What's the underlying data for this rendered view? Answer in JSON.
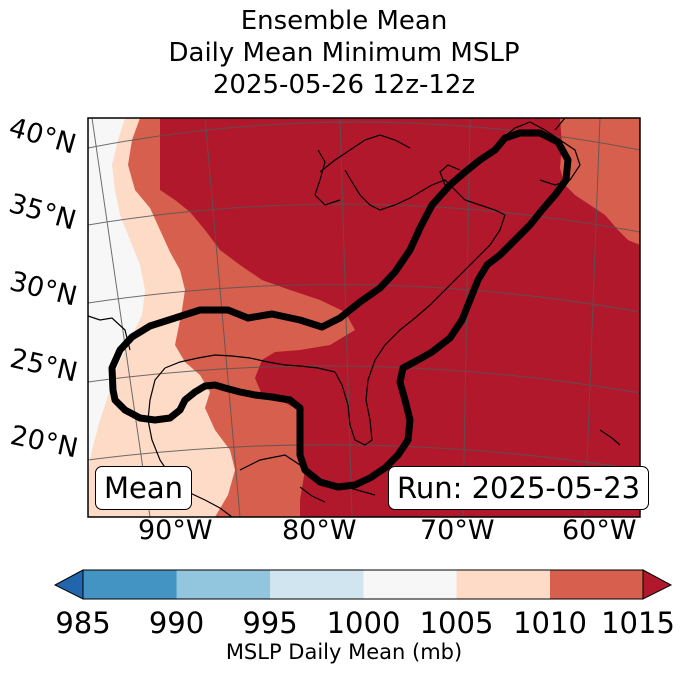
{
  "title": {
    "line1": "Ensemble Mean",
    "line2": "Daily Mean Minimum MSLP",
    "line3": "2025-05-26 12z-12z"
  },
  "map": {
    "latitude_labels": [
      "40°N",
      "35°N",
      "30°N",
      "25°N",
      "20°N"
    ],
    "longitude_labels": [
      "90°W",
      "80°W",
      "70°W",
      "60°W"
    ],
    "left_box": "Mean",
    "right_box": "Run: 2025-05-23"
  },
  "colorbar": {
    "ticks": [
      "985",
      "990",
      "995",
      "1000",
      "1005",
      "1010",
      "1015"
    ],
    "label": "MSLP Daily Mean (mb)",
    "colors": {
      "below": "#2166ac",
      "b985_990": "#4393c3",
      "b990_995": "#92c5de",
      "b995_1000": "#d1e5f0",
      "b1000_1005": "#f7f7f7",
      "b1005_1010": "#fddbc7",
      "b1010_1015": "#d6604d",
      "above": "#b2182b"
    }
  }
}
